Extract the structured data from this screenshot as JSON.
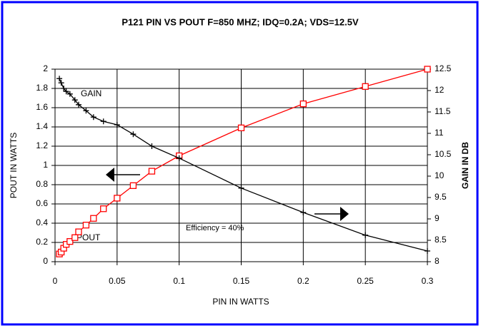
{
  "chart_data": {
    "type": "line",
    "title": "P121  PIN VS POUT F=850 MHZ; IDQ=0.2A; VDS=12.5V",
    "xlabel": "PIN IN WATTS",
    "ylabel": "POUT IN WATTS",
    "y2label": "GAIN IN DB",
    "annotations": [
      "GAIN",
      "POUT",
      "Efficiency = 40%"
    ],
    "xlim": [
      0,
      0.3
    ],
    "xticks": [
      0,
      0.05,
      0.1,
      0.15,
      0.2,
      0.25,
      0.3
    ],
    "ylim": [
      0,
      2
    ],
    "yticks": [
      0,
      0.2,
      0.4,
      0.6,
      0.8,
      1,
      1.2,
      1.4,
      1.6,
      1.8,
      2
    ],
    "y2lim": [
      8,
      12.5
    ],
    "y2ticks": [
      8,
      8.5,
      9,
      9.5,
      10,
      10.5,
      11,
      11.5,
      12,
      12.5
    ],
    "grid": true,
    "series": [
      {
        "name": "POUT",
        "color": "#ff0000",
        "marker": "square",
        "x": [
          0.0035,
          0.005,
          0.007,
          0.009,
          0.012,
          0.016,
          0.019,
          0.025,
          0.031,
          0.039,
          0.05,
          0.063,
          0.078,
          0.1,
          0.15,
          0.2,
          0.25,
          0.3
        ],
        "values": [
          0.08,
          0.1,
          0.14,
          0.18,
          0.21,
          0.25,
          0.31,
          0.38,
          0.45,
          0.55,
          0.66,
          0.79,
          0.94,
          1.1,
          1.39,
          1.64,
          1.82,
          2.0
        ]
      },
      {
        "name": "GAIN",
        "color": "#000000",
        "marker": "plus",
        "axis": "y2",
        "x": [
          0.0035,
          0.005,
          0.007,
          0.009,
          0.012,
          0.016,
          0.019,
          0.025,
          0.031,
          0.039,
          0.05,
          0.063,
          0.078,
          0.1,
          0.15,
          0.2,
          0.25,
          0.3
        ],
        "values": [
          12.28,
          12.18,
          12.05,
          11.98,
          11.92,
          11.78,
          11.67,
          11.53,
          11.38,
          11.28,
          11.2,
          10.98,
          10.7,
          10.42,
          9.72,
          9.15,
          8.62,
          8.25
        ]
      }
    ]
  }
}
